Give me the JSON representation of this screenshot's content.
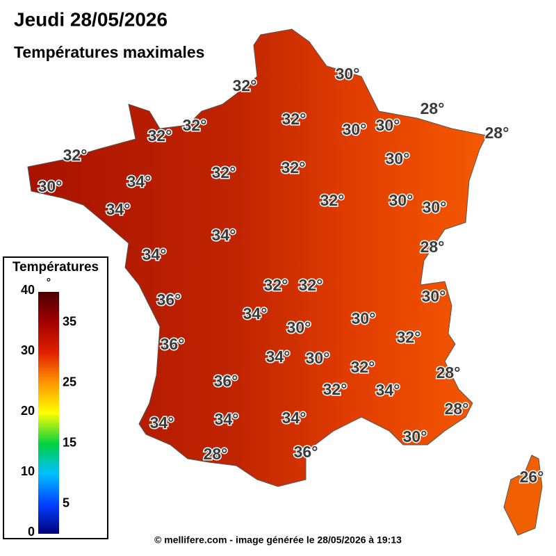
{
  "title": "Jeudi 28/05/2026",
  "subtitle": "Températures maximales",
  "legend": {
    "title": "Températures",
    "ticks": [
      0,
      10,
      20,
      30,
      40
    ],
    "minor_ticks": [
      5,
      15,
      25,
      35
    ],
    "unit": "°"
  },
  "labels": [
    "30°",
    "32°",
    "28°",
    "32°",
    "32°",
    "30°",
    "30°",
    "28°",
    "32°",
    "32°",
    "30°",
    "32°",
    "32°",
    "34°",
    "30°",
    "32°",
    "30°",
    "30°",
    "34°",
    "34°",
    "28°",
    "34°",
    "32°",
    "32°",
    "30°",
    "36°",
    "34°",
    "30°",
    "30°",
    "32°",
    "36°",
    "34°",
    "30°",
    "32°",
    "28°",
    "36°",
    "32°",
    "34°",
    "28°",
    "34°",
    "34°",
    "34°",
    "30°",
    "28°",
    "36°",
    "26°"
  ],
  "footer": "© mellifere.com - image générée le 28/05/2026 à 19:13"
}
